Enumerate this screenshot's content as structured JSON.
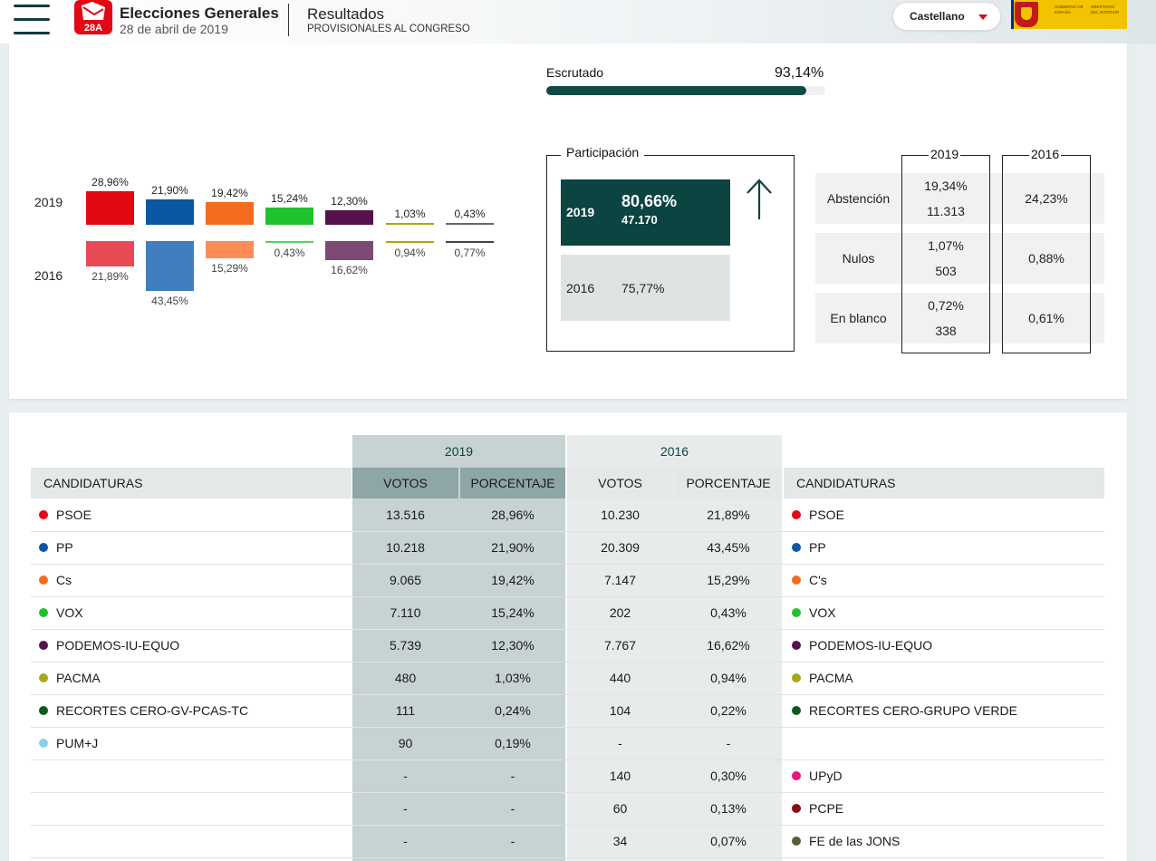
{
  "header": {
    "logo_text": "28A",
    "title": "Elecciones Generales",
    "date": "28 de abril de 2019",
    "section": "Resultados",
    "subsection": "PROVISIONALES AL CONGRESO",
    "language": "Castellano",
    "gov_text_1": "GOBIERNO DE ESPAÑA",
    "gov_text_2": "MINISTERIO DEL INTERIOR"
  },
  "scrutiny": {
    "label": "Escrutado",
    "value": "93,14%",
    "fraction": 0.9314
  },
  "comparison_chart": {
    "year_top": "2019",
    "year_bottom": "2016",
    "bars": [
      {
        "color": "#e30613",
        "color16": "#e84a55",
        "v19": 28.96,
        "l19": "28,96%",
        "v16": 21.89,
        "l16": "21,89%"
      },
      {
        "color": "#0a57a4",
        "color16": "#3f7fbf",
        "v19": 21.9,
        "l19": "21,90%",
        "v16": 43.45,
        "l16": "43,45%"
      },
      {
        "color": "#f56b1f",
        "color16": "#fb8c53",
        "v19": 19.42,
        "l19": "19,42%",
        "v16": 15.29,
        "l16": "15,29%"
      },
      {
        "color": "#1fc12c",
        "color16": "#4fd45a",
        "v19": 15.24,
        "l19": "15,24%",
        "v16": 0.43,
        "l16": "0,43%"
      },
      {
        "color": "#56124c",
        "color16": "#7d4a76",
        "v19": 12.3,
        "l19": "12,30%",
        "v16": 16.62,
        "l16": "16,62%"
      },
      {
        "color": "#a8a814",
        "color16": "#a8a814",
        "v19": 1.03,
        "l19": "1,03%",
        "v16": 0.94,
        "l16": "0,94%"
      },
      {
        "color": "#666666",
        "color16": "#444444",
        "v19": 0.43,
        "l19": "0,43%",
        "v16": 0.77,
        "l16": "0,77%"
      }
    ]
  },
  "participation": {
    "title": "Participación",
    "y2019": "2019",
    "pct2019": "80,66%",
    "num2019": "47.170",
    "y2016": "2016",
    "pct2016": "75,77%"
  },
  "abstention": {
    "head2019": "2019",
    "head2016": "2016",
    "rows": [
      {
        "label": "Abstención",
        "pct19": "19,34%",
        "num19": "11.313",
        "pct16": "24,23%"
      },
      {
        "label": "Nulos",
        "pct19": "1,07%",
        "num19": "503",
        "pct16": "0,88%"
      },
      {
        "label": "En blanco",
        "pct19": "0,72%",
        "num19": "338",
        "pct16": "0,61%"
      }
    ]
  },
  "results": {
    "year2019": "2019",
    "year2016": "2016",
    "headers": {
      "cand": "CANDIDATURAS",
      "votes19": "VOTOS",
      "pct19": "PORCENTAJE",
      "votes16": "VOTOS",
      "pct16": "PORCENTAJE",
      "cand16": "CANDIDATURAS"
    },
    "rows": [
      {
        "c19": "PSOE",
        "col19": "#e30613",
        "v19": "13.516",
        "p19": "28,96%",
        "v16": "10.230",
        "p16": "21,89%",
        "c16": "PSOE",
        "col16": "#e30613"
      },
      {
        "c19": "PP",
        "col19": "#0a57a4",
        "v19": "10.218",
        "p19": "21,90%",
        "v16": "20.309",
        "p16": "43,45%",
        "c16": "PP",
        "col16": "#0a57a4"
      },
      {
        "c19": "Cs",
        "col19": "#f56b1f",
        "v19": "9.065",
        "p19": "19,42%",
        "v16": "7.147",
        "p16": "15,29%",
        "c16": "C's",
        "col16": "#f56b1f"
      },
      {
        "c19": "VOX",
        "col19": "#1fc12c",
        "v19": "7.110",
        "p19": "15,24%",
        "v16": "202",
        "p16": "0,43%",
        "c16": "VOX",
        "col16": "#1fc12c"
      },
      {
        "c19": "PODEMOS-IU-EQUO",
        "col19": "#56124c",
        "v19": "5.739",
        "p19": "12,30%",
        "v16": "7.767",
        "p16": "16,62%",
        "c16": "PODEMOS-IU-EQUO",
        "col16": "#56124c"
      },
      {
        "c19": "PACMA",
        "col19": "#a8a814",
        "v19": "480",
        "p19": "1,03%",
        "v16": "440",
        "p16": "0,94%",
        "c16": "PACMA",
        "col16": "#a8a814"
      },
      {
        "c19": "RECORTES CERO-GV-PCAS-TC",
        "col19": "#0d5a1a",
        "v19": "111",
        "p19": "0,24%",
        "v16": "104",
        "p16": "0,22%",
        "c16": "RECORTES CERO-GRUPO VERDE",
        "col16": "#0d5a1a"
      },
      {
        "c19": "PUM+J",
        "col19": "#86d2ea",
        "v19": "90",
        "p19": "0,19%",
        "v16": "-",
        "p16": "-",
        "c16": "",
        "col16": ""
      },
      {
        "c19": "",
        "col19": "",
        "v19": "-",
        "p19": "-",
        "v16": "140",
        "p16": "0,30%",
        "c16": "UPyD",
        "col16": "#e6157f"
      },
      {
        "c19": "",
        "col19": "",
        "v19": "-",
        "p19": "-",
        "v16": "60",
        "p16": "0,13%",
        "c16": "PCPE",
        "col16": "#8b0d12"
      },
      {
        "c19": "",
        "col19": "",
        "v19": "-",
        "p19": "-",
        "v16": "34",
        "p16": "0,07%",
        "c16": "FE de las JONS",
        "col16": "#5c5c34"
      }
    ]
  }
}
